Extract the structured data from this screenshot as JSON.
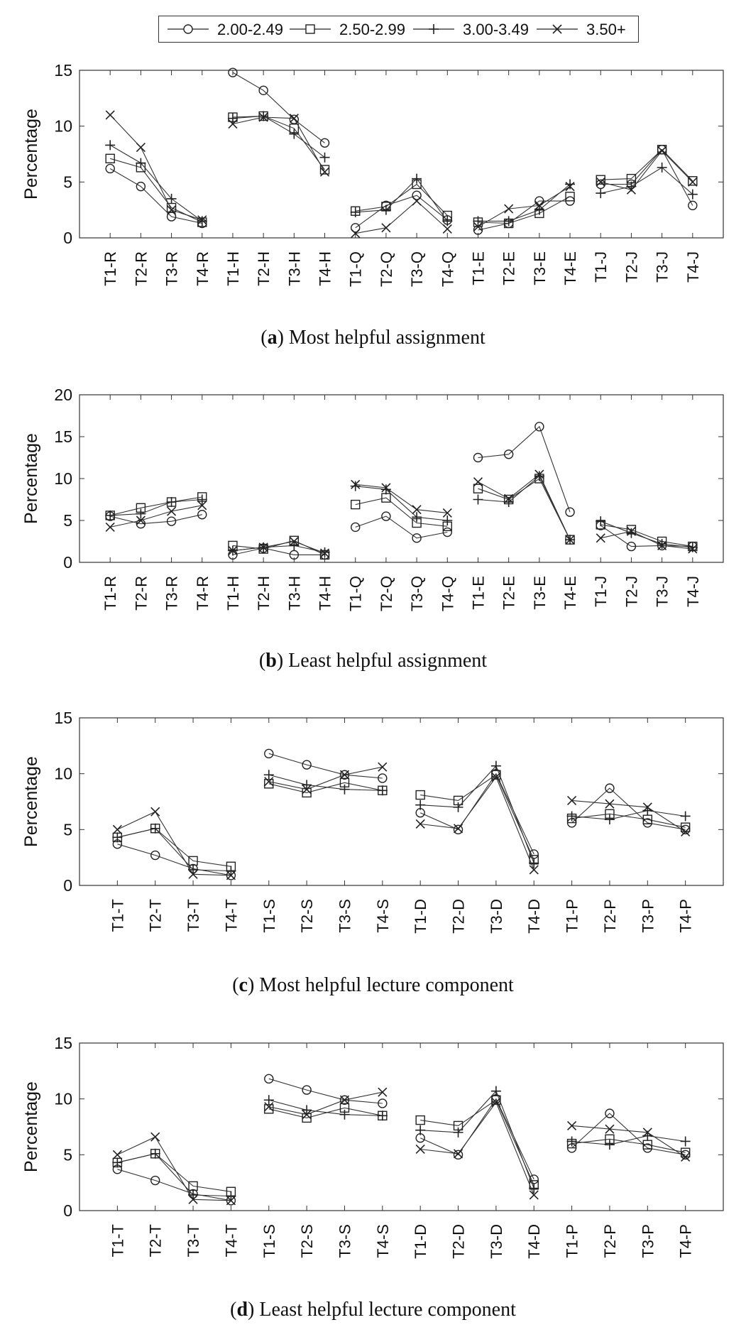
{
  "legend": {
    "series": [
      {
        "name": "2.00-2.49",
        "marker": "circle"
      },
      {
        "name": "2.50-2.99",
        "marker": "square"
      },
      {
        "name": "3.00-3.49",
        "marker": "plus"
      },
      {
        "name": "3.50+",
        "marker": "cross"
      }
    ]
  },
  "chart_data": [
    {
      "type": "line",
      "panel": "a",
      "caption_prefix": "a",
      "caption_text": "Most helpful assignment",
      "ylabel": "Percentage",
      "ylim": [
        0,
        15
      ],
      "yticks": [
        0,
        5,
        10,
        15
      ],
      "groups": [
        4,
        4,
        4,
        4,
        4
      ],
      "categories": [
        "T1-R",
        "T2-R",
        "T3-R",
        "T4-R",
        "T1-H",
        "T2-H",
        "T3-H",
        "T4-H",
        "T1-Q",
        "T2-Q",
        "T3-Q",
        "T4-Q",
        "T1-E",
        "T2-E",
        "T3-E",
        "T4-E",
        "T1-J",
        "T2-J",
        "T3-J",
        "T4-J"
      ],
      "series": [
        {
          "name": "2.00-2.49",
          "values": [
            6.2,
            4.6,
            1.9,
            1.3,
            14.8,
            13.2,
            10.6,
            8.5,
            0.9,
            2.9,
            3.8,
            1.6,
            0.7,
            1.3,
            3.3,
            3.3,
            4.8,
            4.8,
            7.9,
            2.9
          ]
        },
        {
          "name": "2.50-2.99",
          "values": [
            7.1,
            6.3,
            2.7,
            1.4,
            10.8,
            10.9,
            9.8,
            6.1,
            2.4,
            2.8,
            4.8,
            2.0,
            1.4,
            1.3,
            2.2,
            3.7,
            5.2,
            5.3,
            7.9,
            5.1
          ]
        },
        {
          "name": "3.00-3.49",
          "values": [
            8.3,
            6.7,
            3.5,
            1.5,
            10.7,
            10.9,
            9.3,
            7.2,
            2.3,
            2.5,
            5.3,
            1.5,
            1.5,
            1.5,
            2.5,
            4.8,
            4.0,
            4.6,
            6.3,
            3.9
          ]
        },
        {
          "name": "3.50+",
          "values": [
            11.0,
            8.1,
            2.5,
            1.6,
            10.2,
            10.8,
            10.7,
            5.9,
            0.4,
            0.9,
            3.3,
            0.8,
            1.0,
            2.6,
            2.9,
            4.6,
            5.0,
            4.3,
            7.8,
            5.0
          ]
        }
      ]
    },
    {
      "type": "line",
      "panel": "b",
      "caption_prefix": "b",
      "caption_text": "Least helpful assignment",
      "ylabel": "Percentage",
      "ylim": [
        0,
        20
      ],
      "yticks": [
        0,
        5,
        10,
        15,
        20
      ],
      "groups": [
        4,
        4,
        4,
        4,
        4
      ],
      "categories": [
        "T1-R",
        "T2-R",
        "T3-R",
        "T4-R",
        "T1-H",
        "T2-H",
        "T3-H",
        "T4-H",
        "T1-Q",
        "T2-Q",
        "T3-Q",
        "T4-Q",
        "T1-E",
        "T2-E",
        "T3-E",
        "T4-E",
        "T1-J",
        "T2-J",
        "T3-J",
        "T4-J"
      ],
      "series": [
        {
          "name": "2.00-2.49",
          "values": [
            5.5,
            4.6,
            4.9,
            5.7,
            0.9,
            1.7,
            0.9,
            0.9,
            4.2,
            5.5,
            2.9,
            3.6,
            12.5,
            12.9,
            16.2,
            6.0,
            4.4,
            1.9,
            2.0,
            1.9
          ]
        },
        {
          "name": "2.50-2.99",
          "values": [
            5.6,
            6.5,
            7.2,
            7.8,
            2.0,
            1.6,
            2.6,
            0.9,
            6.9,
            7.7,
            4.7,
            4.3,
            8.8,
            7.5,
            10.0,
            2.7,
            4.5,
            3.9,
            2.5,
            1.9
          ]
        },
        {
          "name": "3.00-3.49",
          "values": [
            5.6,
            5.8,
            7.2,
            7.5,
            1.4,
            1.8,
            2.0,
            1.2,
            9.1,
            8.7,
            5.4,
            5.0,
            7.5,
            7.2,
            10.3,
            2.7,
            4.9,
            3.5,
            2.2,
            1.8
          ]
        },
        {
          "name": "3.50+",
          "values": [
            4.2,
            5.0,
            6.1,
            6.8,
            1.4,
            1.8,
            2.5,
            1.1,
            9.3,
            8.9,
            6.3,
            5.9,
            9.6,
            7.6,
            10.5,
            2.7,
            2.9,
            3.7,
            2.0,
            1.6
          ]
        }
      ]
    },
    {
      "type": "line",
      "panel": "c",
      "caption_prefix": "c",
      "caption_text": "Most helpful lecture component",
      "ylabel": "Percentage",
      "ylim": [
        0,
        15
      ],
      "yticks": [
        0,
        5,
        10,
        15
      ],
      "groups": [
        4,
        4,
        4,
        4
      ],
      "categories": [
        "T1-T",
        "T2-T",
        "T3-T",
        "T4-T",
        "T1-S",
        "T2-S",
        "T3-S",
        "T4-S",
        "T1-D",
        "T2-D",
        "T3-D",
        "T4-D",
        "T1-P",
        "T2-P",
        "T3-P",
        "T4-P"
      ],
      "series": [
        {
          "name": "2.00-2.49",
          "values": [
            3.7,
            2.7,
            1.5,
            0.9,
            11.8,
            10.8,
            9.9,
            9.6,
            6.5,
            5.0,
            10.0,
            2.8,
            5.6,
            8.7,
            5.6,
            5.0
          ]
        },
        {
          "name": "2.50-2.99",
          "values": [
            4.3,
            5.1,
            2.2,
            1.7,
            9.1,
            8.3,
            9.2,
            8.5,
            8.1,
            7.6,
            9.9,
            2.3,
            6.0,
            6.4,
            5.9,
            5.2
          ]
        },
        {
          "name": "3.00-3.49",
          "values": [
            4.3,
            5.1,
            1.4,
            1.3,
            9.9,
            9.0,
            8.6,
            8.5,
            7.2,
            7.0,
            10.7,
            2.0,
            6.2,
            5.9,
            6.7,
            6.2
          ]
        },
        {
          "name": "3.50+",
          "values": [
            5.0,
            6.6,
            1.0,
            0.9,
            9.3,
            8.6,
            9.9,
            10.6,
            5.5,
            5.1,
            9.7,
            1.4,
            7.6,
            7.3,
            7.0,
            4.8
          ]
        }
      ]
    },
    {
      "type": "line",
      "panel": "d",
      "caption_prefix": "d",
      "caption_text": "Least helpful lecture component",
      "ylabel": "Percentage",
      "ylim": [
        0,
        15
      ],
      "yticks": [
        0,
        5,
        10,
        15
      ],
      "groups": [
        4,
        4,
        4,
        4
      ],
      "categories": [
        "T1-T",
        "T2-T",
        "T3-T",
        "T4-T",
        "T1-S",
        "T2-S",
        "T3-S",
        "T4-S",
        "T1-D",
        "T2-D",
        "T3-D",
        "T4-D",
        "T1-P",
        "T2-P",
        "T3-P",
        "T4-P"
      ],
      "series": [
        {
          "name": "2.00-2.49",
          "values": [
            3.7,
            2.7,
            1.5,
            0.9,
            11.8,
            10.8,
            9.9,
            9.6,
            6.5,
            5.0,
            10.0,
            2.8,
            5.6,
            8.7,
            5.6,
            5.0
          ]
        },
        {
          "name": "2.50-2.99",
          "values": [
            4.3,
            5.1,
            2.2,
            1.7,
            9.1,
            8.3,
            9.2,
            8.5,
            8.1,
            7.6,
            9.9,
            2.3,
            6.0,
            6.4,
            5.9,
            5.2
          ]
        },
        {
          "name": "3.00-3.49",
          "values": [
            4.3,
            5.1,
            1.4,
            1.3,
            9.9,
            9.0,
            8.6,
            8.5,
            7.2,
            7.0,
            10.7,
            2.0,
            6.2,
            5.9,
            6.7,
            6.2
          ]
        },
        {
          "name": "3.50+",
          "values": [
            5.0,
            6.6,
            1.0,
            0.9,
            9.3,
            8.6,
            9.9,
            10.6,
            5.5,
            5.1,
            9.7,
            1.4,
            7.6,
            7.3,
            7.0,
            4.8
          ]
        }
      ]
    }
  ]
}
